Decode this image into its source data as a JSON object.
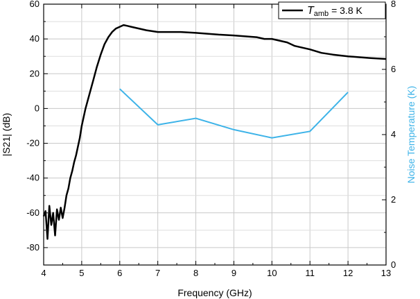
{
  "chart_data": {
    "type": "line",
    "xlabel": "Frequency (GHz)",
    "ylabel_left": "|S21| (dB)",
    "ylabel_right": "Noise Temperature (K)",
    "xlim": [
      4,
      13
    ],
    "ylim_left": [
      -90,
      60
    ],
    "ylim_right": [
      0,
      8
    ],
    "x_ticks": [
      "4",
      "5",
      "6",
      "7",
      "8",
      "9",
      "10",
      "11",
      "12",
      "13"
    ],
    "y_left_ticks": [
      "-80",
      "-60",
      "-40",
      "-20",
      "0",
      "20",
      "40",
      "60"
    ],
    "y_right_ticks": [
      "0",
      "2",
      "4",
      "6",
      "8"
    ],
    "grid": true,
    "legend": {
      "placement": "top-right",
      "symbol": "T",
      "subscript": "amb",
      "suffix": " = 3.8 K"
    },
    "colors": {
      "s21": "#000000",
      "noise": "#3db3e8"
    },
    "series": [
      {
        "axis": "left",
        "x": [
          4.0,
          4.05,
          4.1,
          4.15,
          4.2,
          4.25,
          4.3,
          4.35,
          4.4,
          4.45,
          4.5,
          4.55,
          4.6,
          4.65,
          4.7,
          4.75,
          4.8,
          4.85,
          4.9,
          4.95,
          5.0,
          5.1,
          5.2,
          5.3,
          5.4,
          5.5,
          5.6,
          5.7,
          5.8,
          5.9,
          6.0,
          6.1,
          6.2,
          6.3,
          6.5,
          6.7,
          7.0,
          7.3,
          7.6,
          8.0,
          8.3,
          8.6,
          9.0,
          9.3,
          9.6,
          9.8,
          10.0,
          10.2,
          10.4,
          10.6,
          10.8,
          11.0,
          11.3,
          11.6,
          12.0,
          12.3,
          12.6,
          13.0
        ],
        "values": [
          -62,
          -59,
          -75,
          -56,
          -67,
          -60,
          -73,
          -58,
          -64,
          -57,
          -63,
          -57,
          -50,
          -46,
          -40,
          -36,
          -31,
          -27,
          -22,
          -17,
          -10,
          0,
          8,
          16,
          24,
          31,
          37,
          41,
          44,
          46,
          47,
          48,
          47.5,
          47,
          46,
          45,
          44,
          44,
          44,
          43.5,
          43,
          42.5,
          42,
          41.5,
          41,
          40,
          40,
          39,
          38,
          36,
          35,
          34,
          32,
          31,
          30,
          29.5,
          29,
          28.5
        ]
      },
      {
        "axis": "right",
        "x": [
          6,
          7,
          8,
          9,
          10,
          11,
          12
        ],
        "values": [
          5.4,
          4.3,
          4.5,
          4.15,
          3.9,
          4.1,
          5.3
        ]
      }
    ]
  }
}
